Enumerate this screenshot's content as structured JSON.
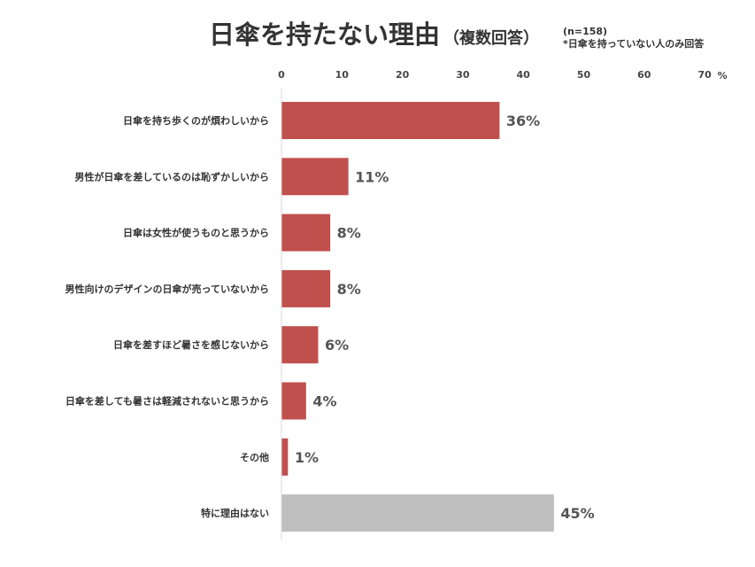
{
  "title": "日傘を持たない理由",
  "subtitle": "（複数回答）",
  "note_n": "(n=158)",
  "note_text": "*日傘を持っていない人のみ回答",
  "chart_data": {
    "type": "bar",
    "orientation": "horizontal",
    "title": "日傘を持たない理由（複数回答）",
    "categories": [
      "日傘を持ち歩くのが煩わしいから",
      "男性が日傘を差しているのは恥ずかしいから",
      "日傘は女性が使うものと思うから",
      "男性向けのデザインの日傘が売っていないから",
      "日傘を差すほど暑さを感じないから",
      "日傘を差しても暑さは軽減されないと思うから",
      "その他",
      "特に理由はない"
    ],
    "values": [
      36,
      11,
      8,
      8,
      6,
      4,
      1,
      45
    ],
    "value_labels": [
      "36%",
      "11%",
      "8%",
      "8%",
      "6%",
      "4%",
      "1%",
      "45%"
    ],
    "xlim": [
      0,
      70
    ],
    "x_ticks": [
      "0",
      "10",
      "20",
      "30",
      "40",
      "50",
      "60",
      "70"
    ],
    "x_unit": "%",
    "axis_position": "top",
    "grid": false,
    "colors": {
      "bar": "#c0504d",
      "highlight_bar": "#bfbfbf"
    },
    "highlight_index": 7
  }
}
